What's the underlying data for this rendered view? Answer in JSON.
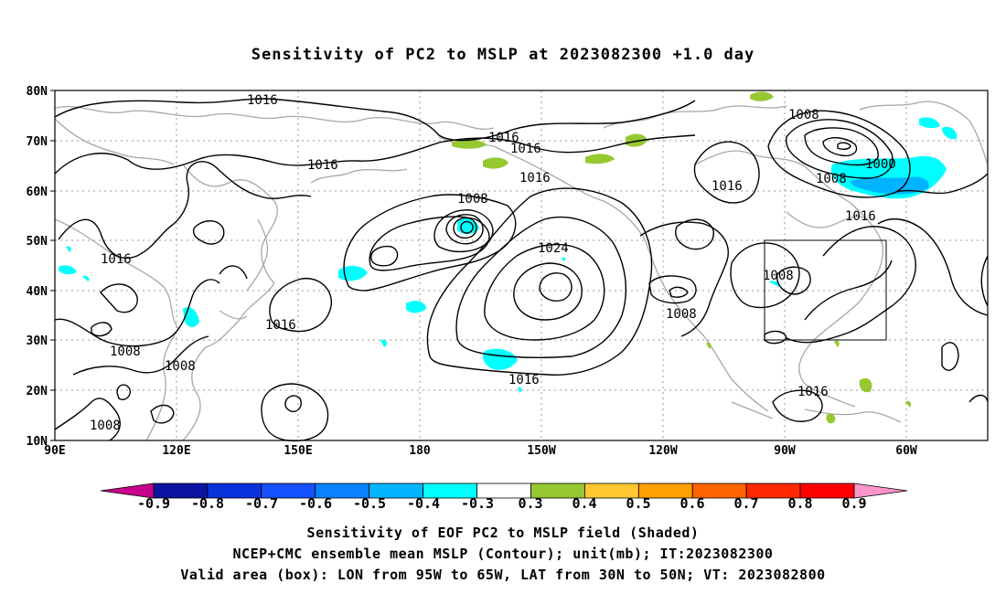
{
  "title": "Sensitivity of PC2 to MSLP at 2023082300 +1.0 day",
  "lat_ticks": [
    "80N",
    "70N",
    "60N",
    "50N",
    "40N",
    "30N",
    "20N",
    "10N"
  ],
  "lon_ticks": [
    "90E",
    "120E",
    "150E",
    "180",
    "150W",
    "120W",
    "90W",
    "60W"
  ],
  "contour_labels": [
    "1016",
    "1016",
    "1016",
    "1016",
    "1016",
    "1016",
    "1016",
    "1016",
    "1016",
    "1016",
    "1016",
    "1008",
    "1008",
    "1008",
    "1008",
    "1008",
    "1008",
    "1008",
    "1008",
    "1000",
    "1024"
  ],
  "colorbar": {
    "labels": [
      "-0.9",
      "-0.8",
      "-0.7",
      "-0.6",
      "-0.5",
      "-0.4",
      "-0.3",
      "0.3",
      "0.4",
      "0.5",
      "0.6",
      "0.7",
      "0.8",
      "0.9"
    ],
    "colors": [
      "#c8008c",
      "#0a14a0",
      "#0a32dc",
      "#1450ff",
      "#0a82ff",
      "#00b4ff",
      "#00ffff",
      "#ffffff",
      "#96c832",
      "#ffc832",
      "#ffa000",
      "#ff6400",
      "#ff2800",
      "#ff0000",
      "#ff96c8"
    ]
  },
  "box": {
    "lon_range": "95W to 65W",
    "lat_range": "30N to 50N"
  },
  "footer": {
    "line1": "Sensitivity of EOF PC2 to MSLP field (Shaded)",
    "line2": "NCEP+CMC ensemble mean MSLP (Contour); unit(mb); IT:2023082300",
    "line3": "Valid area (box): LON from 95W to 65W, LAT from 30N to 50N; VT: 2023082800"
  }
}
